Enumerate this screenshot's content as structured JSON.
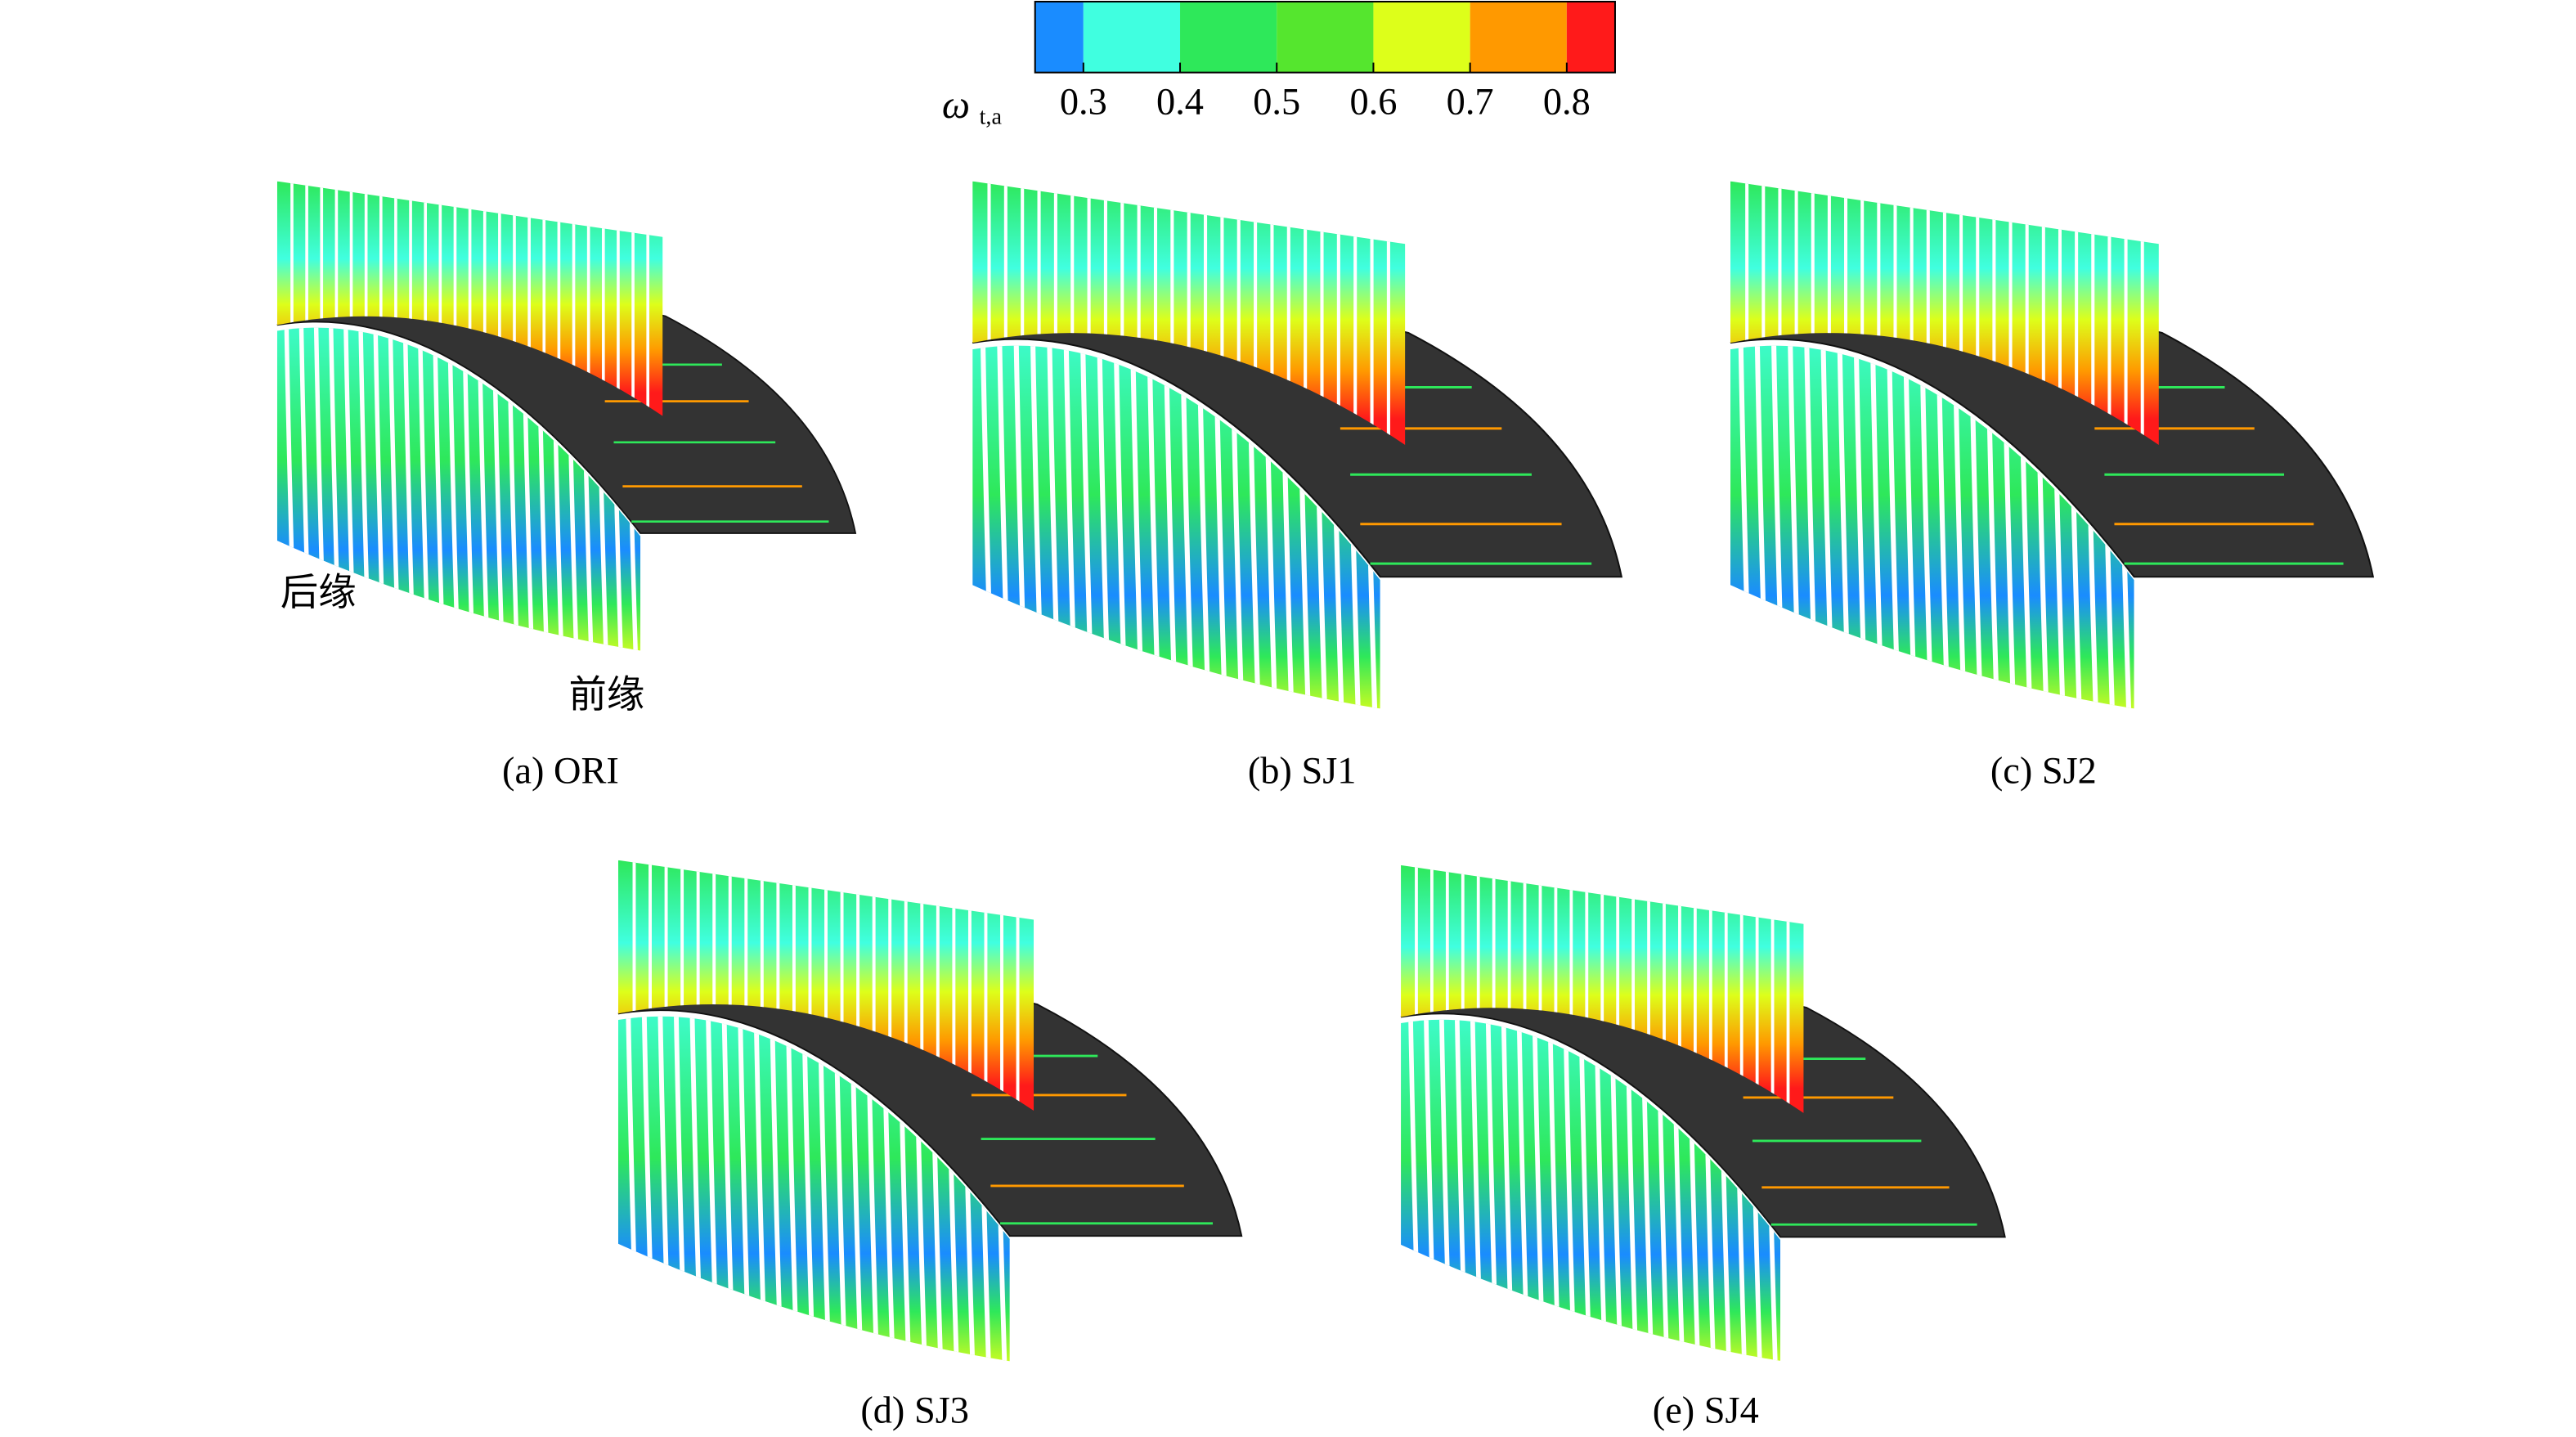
{
  "colorbar": {
    "symbol": "ω",
    "subscript": "t,a",
    "clim": [
      0.25,
      0.85
    ],
    "ticks": [
      0.3,
      0.4,
      0.5,
      0.6,
      0.7,
      0.8
    ],
    "colors": [
      "#1a8cff",
      "#40ffe0",
      "#2ee85a",
      "#55e62e",
      "#ddff1a",
      "#ff9900",
      "#ff1a1a"
    ]
  },
  "panels": [
    {
      "caption": "(a) ORI"
    },
    {
      "caption": "(b) SJ1"
    },
    {
      "caption": "(c) SJ2"
    },
    {
      "caption": "(d) SJ3"
    },
    {
      "caption": "(e) SJ4"
    }
  ],
  "annotations": {
    "trailing_edge": "后缘",
    "leading_edge": "前缘"
  }
}
